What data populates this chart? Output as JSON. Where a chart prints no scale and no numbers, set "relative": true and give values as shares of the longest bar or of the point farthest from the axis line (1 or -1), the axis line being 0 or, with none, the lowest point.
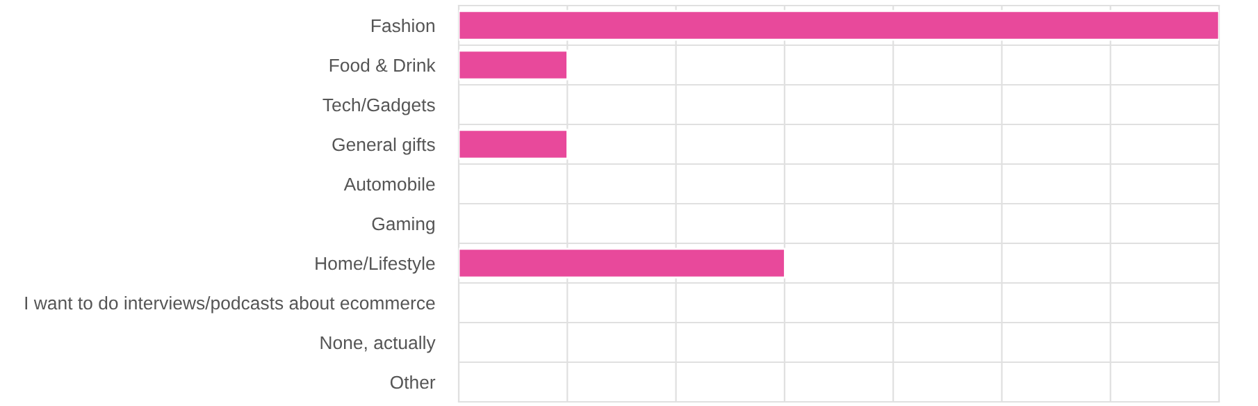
{
  "chart_data": {
    "type": "bar",
    "orientation": "horizontal",
    "relative": true,
    "categories": [
      "Fashion",
      "Food & Drink",
      "Tech/Gadgets",
      "General gifts",
      "Automobile",
      "Gaming",
      "Home/Lifestyle",
      "I want to do interviews/podcasts about ecommerce",
      "None, actually",
      "Other"
    ],
    "values": [
      1,
      0.143,
      0,
      0.143,
      0,
      0,
      0.429,
      0,
      0,
      0
    ],
    "color": "#e8499b",
    "grid": true
  }
}
